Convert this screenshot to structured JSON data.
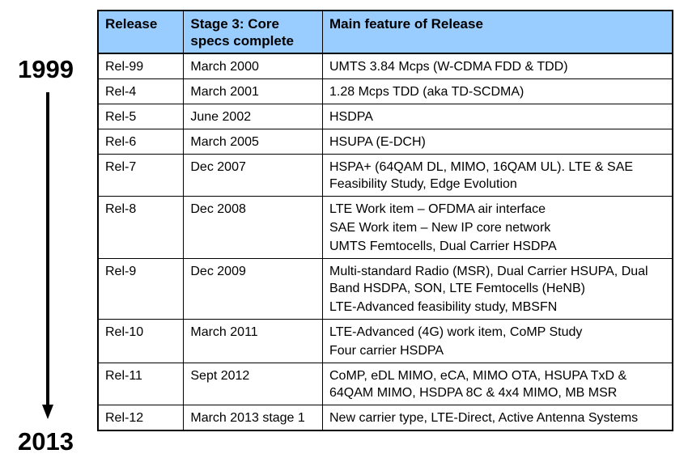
{
  "timeline": {
    "start_year": "1999",
    "end_year": "2013"
  },
  "table": {
    "headers": {
      "release": "Release",
      "stage3_line1": "Stage 3: Core",
      "stage3_line2": "specs complete",
      "feature": "Main feature of Release"
    },
    "rows": [
      {
        "release": "Rel-99",
        "date": "March 2000",
        "features": [
          "UMTS 3.84 Mcps (W-CDMA FDD & TDD)"
        ]
      },
      {
        "release": "Rel-4",
        "date": "March 2001",
        "features": [
          "1.28 Mcps TDD (aka TD-SCDMA)"
        ]
      },
      {
        "release": "Rel-5",
        "date": "June 2002",
        "features": [
          "HSDPA"
        ]
      },
      {
        "release": "Rel-6",
        "date": "March 2005",
        "features": [
          "HSUPA (E-DCH)"
        ]
      },
      {
        "release": "Rel-7",
        "date": "Dec 2007",
        "features": [
          "HSPA+ (64QAM DL, MIMO, 16QAM UL). LTE & SAE Feasibility Study, Edge Evolution"
        ]
      },
      {
        "release": "Rel-8",
        "date": "Dec 2008",
        "features": [
          "LTE Work item – OFDMA air interface",
          "SAE Work item – New IP core network",
          "UMTS Femtocells, Dual Carrier HSDPA"
        ]
      },
      {
        "release": "Rel-9",
        "date": "Dec 2009",
        "features": [
          "Multi-standard Radio (MSR), Dual Carrier HSUPA, Dual Band HSDPA, SON, LTE Femtocells (HeNB)",
          "LTE-Advanced feasibility study, MBSFN"
        ]
      },
      {
        "release": "Rel-10",
        "date": "March 2011",
        "features": [
          "LTE-Advanced (4G) work item, CoMP Study",
          "Four carrier HSDPA"
        ]
      },
      {
        "release": "Rel-11",
        "date": "Sept 2012",
        "features": [
          "CoMP, eDL MIMO, eCA, MIMO OTA, HSUPA TxD & 64QAM MIMO, HSDPA 8C & 4x4 MIMO, MB MSR"
        ]
      },
      {
        "release": "Rel-12",
        "date": "March 2013 stage 1",
        "features": [
          "New carrier type, LTE-Direct, Active Antenna Systems"
        ]
      }
    ]
  },
  "colors": {
    "header_background": "#99ccff"
  }
}
